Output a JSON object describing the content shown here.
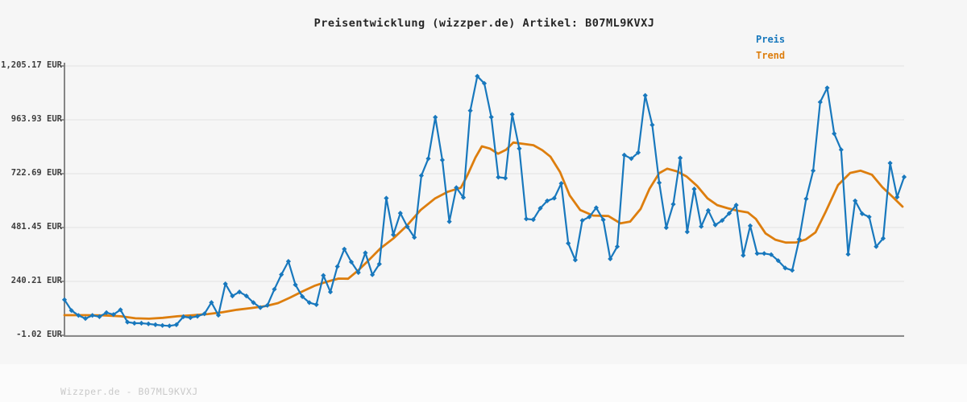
{
  "title": "Preisentwicklung (wizzper.de) Artikel: B07ML9KVXJ",
  "watermark": "Wizzper.de - B07ML9KVXJ",
  "legend": {
    "items": [
      {
        "label": "Preis",
        "color": "#1878bd"
      },
      {
        "label": "Trend",
        "color": "#dd7e0e"
      }
    ]
  },
  "y_axis": {
    "labels": [
      "1,205.17 EUR",
      "963.93 EUR",
      "722.69 EUR",
      "481.45 EUR",
      "240.21 EUR",
      "-1.02 EUR"
    ],
    "values": [
      1205.17,
      963.93,
      722.69,
      481.45,
      240.21,
      -1.02
    ]
  },
  "chart_data": {
    "type": "line",
    "title": "Preisentwicklung (wizzper.de) Artikel: B07ML9KVXJ",
    "xlabel": "",
    "ylabel": "",
    "unit": "EUR",
    "ylim": [
      -1.02,
      1205.17
    ],
    "grid": "horizontal",
    "legend_position": "top-right",
    "x_axis": {
      "tick_labels": "none",
      "note": "time axis, no visible tick labels"
    },
    "series": [
      {
        "name": "Preis",
        "color": "#1878bd",
        "marker": "diamond",
        "values_eur": [
          158,
          110,
          88,
          74,
          88,
          82,
          100,
          92,
          113,
          58,
          53,
          53,
          50,
          46,
          43,
          41,
          46,
          82,
          78,
          84,
          95,
          146,
          89,
          229,
          175,
          193,
          175,
          145,
          123,
          133,
          205,
          271,
          330,
          225,
          172,
          145,
          136,
          267,
          193,
          307,
          385,
          327,
          280,
          368,
          270,
          318,
          613,
          449,
          546,
          485,
          437,
          714,
          790,
          975,
          784,
          508,
          660,
          616,
          1005,
          1159,
          1127,
          976,
          707,
          703,
          988,
          835,
          520,
          517,
          568,
          601,
          613,
          679,
          411,
          336,
          513,
          529,
          570,
          516,
          341,
          396,
          806,
          790,
          817,
          1073,
          941,
          682,
          481,
          586,
          793,
          462,
          654,
          486,
          558,
          493,
          513,
          545,
          582,
          357,
          489,
          365,
          365,
          360,
          333,
          300,
          290,
          429,
          610,
          736,
          1043,
          1107,
          902,
          830,
          362,
          601,
          543,
          529,
          396,
          433,
          770,
          618,
          708
        ]
      },
      {
        "name": "Trend",
        "color": "#dd7e0e",
        "marker": "none",
        "points_x_eur": [
          [
            80,
            89
          ],
          [
            105,
            89
          ],
          [
            130,
            88
          ],
          [
            150,
            84
          ],
          [
            168,
            75
          ],
          [
            185,
            73
          ],
          [
            202,
            77
          ],
          [
            220,
            84
          ],
          [
            240,
            89
          ],
          [
            258,
            94
          ],
          [
            276,
            102
          ],
          [
            294,
            113
          ],
          [
            312,
            121
          ],
          [
            330,
            130
          ],
          [
            345,
            143
          ],
          [
            360,
            168
          ],
          [
            375,
            195
          ],
          [
            390,
            220
          ],
          [
            405,
            238
          ],
          [
            420,
            253
          ],
          [
            432,
            252
          ],
          [
            444,
            288
          ],
          [
            457,
            333
          ],
          [
            472,
            388
          ],
          [
            488,
            432
          ],
          [
            505,
            490
          ],
          [
            522,
            560
          ],
          [
            540,
            612
          ],
          [
            556,
            642
          ],
          [
            572,
            660
          ],
          [
            580,
            715
          ],
          [
            590,
            795
          ],
          [
            598,
            845
          ],
          [
            608,
            835
          ],
          [
            618,
            812
          ],
          [
            628,
            830
          ],
          [
            637,
            862
          ],
          [
            650,
            856
          ],
          [
            662,
            850
          ],
          [
            673,
            828
          ],
          [
            683,
            799
          ],
          [
            695,
            730
          ],
          [
            707,
            625
          ],
          [
            720,
            560
          ],
          [
            736,
            535
          ],
          [
            755,
            533
          ],
          [
            770,
            500
          ],
          [
            782,
            508
          ],
          [
            795,
            565
          ],
          [
            806,
            655
          ],
          [
            818,
            725
          ],
          [
            828,
            745
          ],
          [
            840,
            733
          ],
          [
            852,
            710
          ],
          [
            865,
            668
          ],
          [
            878,
            612
          ],
          [
            890,
            582
          ],
          [
            903,
            568
          ],
          [
            915,
            557
          ],
          [
            928,
            549
          ],
          [
            938,
            520
          ],
          [
            950,
            455
          ],
          [
            962,
            427
          ],
          [
            975,
            414
          ],
          [
            988,
            415
          ],
          [
            1000,
            428
          ],
          [
            1012,
            460
          ],
          [
            1025,
            555
          ],
          [
            1040,
            672
          ],
          [
            1055,
            726
          ],
          [
            1068,
            736
          ],
          [
            1082,
            718
          ],
          [
            1095,
            662
          ],
          [
            1108,
            618
          ],
          [
            1120,
            575
          ]
        ]
      }
    ]
  }
}
